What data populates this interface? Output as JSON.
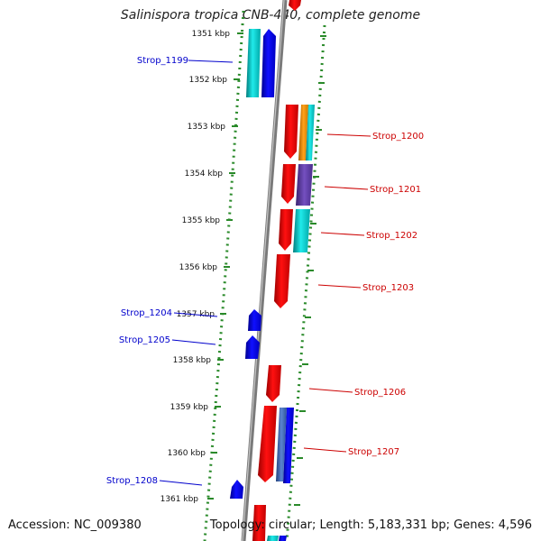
{
  "title": "Salinispora tropica CNB-440, complete genome",
  "footer": {
    "accession": "Accession: NC_009380",
    "summary": "Topology: circular; Length: 5,183,331 bp; Genes: 4,596"
  },
  "colors": {
    "background": "#ffffff",
    "backbone": "#8c8c8c",
    "ruler_dots": "#2a8a2a",
    "ruler_ticks": "#2a8a2a",
    "forward_label": "#cc0000",
    "reverse_label": "#0000cc",
    "tick_text": "#111111"
  },
  "kbp_ticks": [
    {
      "kbp": 1351,
      "label": "1351 kbp"
    },
    {
      "kbp": 1352,
      "label": "1352 kbp"
    },
    {
      "kbp": 1353,
      "label": "1353 kbp"
    },
    {
      "kbp": 1354,
      "label": "1354 kbp"
    },
    {
      "kbp": 1355,
      "label": "1355 kbp"
    },
    {
      "kbp": 1356,
      "label": "1356 kbp"
    },
    {
      "kbp": 1357,
      "label": "1357 kbp"
    },
    {
      "kbp": 1358,
      "label": "1358 kbp"
    },
    {
      "kbp": 1359,
      "label": "1359 kbp"
    },
    {
      "kbp": 1360,
      "label": "1360 kbp"
    },
    {
      "kbp": 1361,
      "label": "1361 kbp"
    }
  ],
  "labels": [
    {
      "text": "Strop_1199",
      "side": "left"
    },
    {
      "text": "Strop_1200",
      "side": "right"
    },
    {
      "text": "Strop_1201",
      "side": "right"
    },
    {
      "text": "Strop_1202",
      "side": "right"
    },
    {
      "text": "Strop_1203",
      "side": "right"
    },
    {
      "text": "Strop_1204",
      "side": "left"
    },
    {
      "text": "Strop_1205",
      "side": "left"
    },
    {
      "text": "Strop_1206",
      "side": "right"
    },
    {
      "text": "Strop_1207",
      "side": "right"
    },
    {
      "text": "Strop_1208",
      "side": "left"
    }
  ],
  "features": [
    {
      "name": "forward-cds",
      "color": "#ff0000",
      "shade": "#a80000",
      "strand": "+"
    },
    {
      "name": "reverse-cds",
      "color": "#0000ff",
      "shade": "#00009a",
      "strand": "-"
    },
    {
      "name": "cyan-feature",
      "color": "#00dede",
      "shade": "#007c7c"
    },
    {
      "name": "orange-feature",
      "color": "#ff9a00",
      "shade": "#a85c00"
    },
    {
      "name": "purple-feature",
      "color": "#6c44b4",
      "shade": "#3a2270"
    },
    {
      "name": "steel-feature",
      "color": "#4a74c4",
      "shade": "#22407a"
    }
  ]
}
